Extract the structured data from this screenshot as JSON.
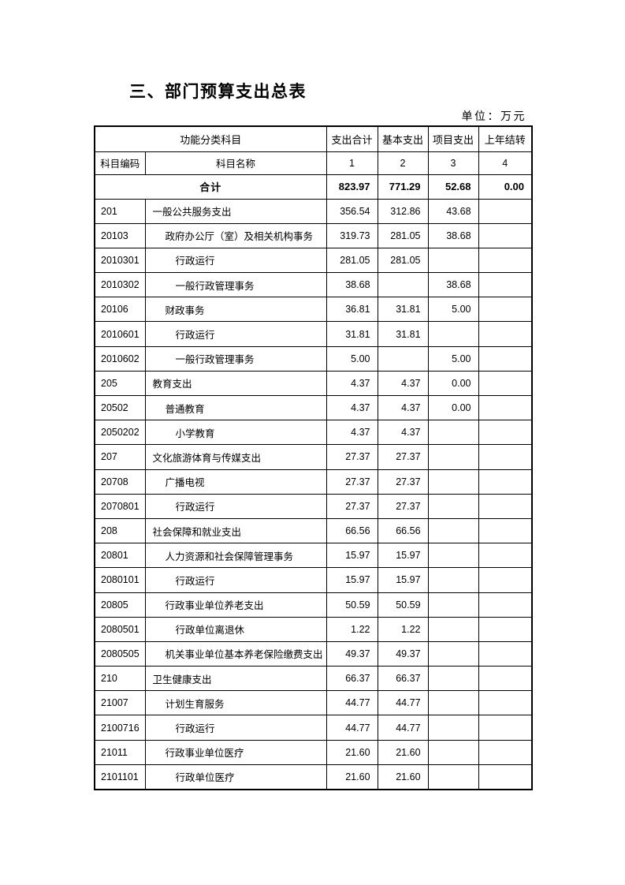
{
  "page": {
    "title": "三、部门预算支出总表",
    "unit_label": "单位：万元"
  },
  "table": {
    "header": {
      "func_category": "功能分类科目",
      "subject_code": "科目编码",
      "subject_name": "科目名称",
      "columns": [
        "支出合计",
        "基本支出",
        "项目支出",
        "上年结转"
      ],
      "column_numbers": [
        "1",
        "2",
        "3",
        "4"
      ]
    },
    "total_row": {
      "label": "合计",
      "values": [
        "823.97",
        "771.29",
        "52.68",
        "0.00"
      ]
    },
    "rows": [
      {
        "code": "201",
        "name": "一般公共服务支出",
        "indent": 0,
        "values": [
          "356.54",
          "312.86",
          "43.68",
          ""
        ]
      },
      {
        "code": "20103",
        "name": "政府办公厅（室）及相关机构事务",
        "indent": 1,
        "values": [
          "319.73",
          "281.05",
          "38.68",
          ""
        ]
      },
      {
        "code": "2010301",
        "name": "行政运行",
        "indent": 2,
        "values": [
          "281.05",
          "281.05",
          "",
          ""
        ]
      },
      {
        "code": "2010302",
        "name": "一般行政管理事务",
        "indent": 2,
        "values": [
          "38.68",
          "",
          "38.68",
          ""
        ]
      },
      {
        "code": "20106",
        "name": "财政事务",
        "indent": 1,
        "values": [
          "36.81",
          "31.81",
          "5.00",
          ""
        ]
      },
      {
        "code": "2010601",
        "name": "行政运行",
        "indent": 2,
        "values": [
          "31.81",
          "31.81",
          "",
          ""
        ]
      },
      {
        "code": "2010602",
        "name": "一般行政管理事务",
        "indent": 2,
        "values": [
          "5.00",
          "",
          "5.00",
          ""
        ]
      },
      {
        "code": "205",
        "name": "教育支出",
        "indent": 0,
        "values": [
          "4.37",
          "4.37",
          "0.00",
          ""
        ]
      },
      {
        "code": "20502",
        "name": "普通教育",
        "indent": 1,
        "values": [
          "4.37",
          "4.37",
          "0.00",
          ""
        ]
      },
      {
        "code": "2050202",
        "name": "小学教育",
        "indent": 2,
        "values": [
          "4.37",
          "4.37",
          "",
          ""
        ]
      },
      {
        "code": "207",
        "name": "文化旅游体育与传媒支出",
        "indent": 0,
        "values": [
          "27.37",
          "27.37",
          "",
          ""
        ]
      },
      {
        "code": "20708",
        "name": "广播电视",
        "indent": 1,
        "values": [
          "27.37",
          "27.37",
          "",
          ""
        ]
      },
      {
        "code": "2070801",
        "name": "行政运行",
        "indent": 2,
        "values": [
          "27.37",
          "27.37",
          "",
          ""
        ]
      },
      {
        "code": "208",
        "name": "社会保障和就业支出",
        "indent": 0,
        "values": [
          "66.56",
          "66.56",
          "",
          ""
        ]
      },
      {
        "code": "20801",
        "name": "人力资源和社会保障管理事务",
        "indent": 1,
        "values": [
          "15.97",
          "15.97",
          "",
          ""
        ]
      },
      {
        "code": "2080101",
        "name": "行政运行",
        "indent": 2,
        "values": [
          "15.97",
          "15.97",
          "",
          ""
        ]
      },
      {
        "code": "20805",
        "name": "行政事业单位养老支出",
        "indent": 1,
        "values": [
          "50.59",
          "50.59",
          "",
          ""
        ]
      },
      {
        "code": "2080501",
        "name": "行政单位离退休",
        "indent": 2,
        "values": [
          "1.22",
          "1.22",
          "",
          ""
        ]
      },
      {
        "code": "2080505",
        "name": "机关事业单位基本养老保险缴费支出",
        "indent": 1,
        "values": [
          "49.37",
          "49.37",
          "",
          ""
        ]
      },
      {
        "code": "210",
        "name": "卫生健康支出",
        "indent": 0,
        "values": [
          "66.37",
          "66.37",
          "",
          ""
        ]
      },
      {
        "code": "21007",
        "name": "计划生育服务",
        "indent": 1,
        "values": [
          "44.77",
          "44.77",
          "",
          ""
        ]
      },
      {
        "code": "2100716",
        "name": "行政运行",
        "indent": 2,
        "values": [
          "44.77",
          "44.77",
          "",
          ""
        ]
      },
      {
        "code": "21011",
        "name": "行政事业单位医疗",
        "indent": 1,
        "values": [
          "21.60",
          "21.60",
          "",
          ""
        ]
      },
      {
        "code": "2101101",
        "name": "行政单位医疗",
        "indent": 2,
        "values": [
          "21.60",
          "21.60",
          "",
          ""
        ]
      }
    ]
  }
}
